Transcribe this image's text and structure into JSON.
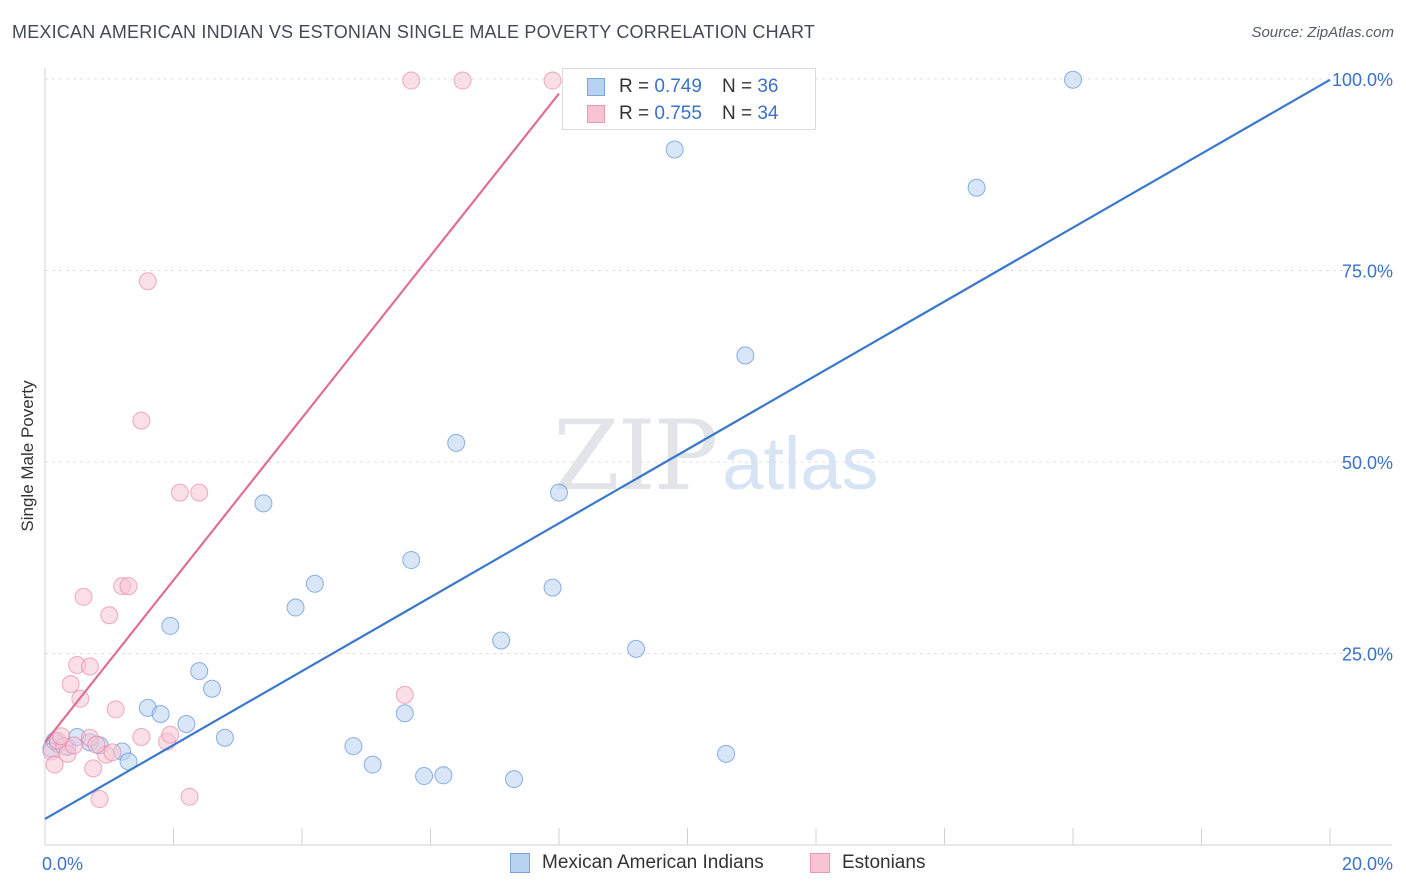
{
  "header": {
    "title": "MEXICAN AMERICAN INDIAN VS ESTONIAN SINGLE MALE POVERTY CORRELATION CHART",
    "source": "Source: ZipAtlas.com"
  },
  "watermark": {
    "zip": "ZIP",
    "atlas": "atlas"
  },
  "legend": {
    "r_label": "R =",
    "n_label": "N =",
    "rows": [
      {
        "r": "0.749",
        "n": "36"
      },
      {
        "r": "0.755",
        "n": "34"
      }
    ]
  },
  "chart_data": {
    "type": "scatter",
    "title": "MEXICAN AMERICAN INDIAN VS ESTONIAN SINGLE MALE POVERTY CORRELATION CHART",
    "xlabel": "",
    "ylabel": "Single Male Poverty",
    "xlim": [
      0,
      20
    ],
    "ylim": [
      0,
      100
    ],
    "x_tick_labels": [
      {
        "value": 0,
        "label": "0.0%"
      },
      {
        "value": 20,
        "label": "20.0%"
      }
    ],
    "y_tick_labels": [
      {
        "value": 25,
        "label": "25.0%"
      },
      {
        "value": 50,
        "label": "50.0%"
      },
      {
        "value": 75,
        "label": "75.0%"
      },
      {
        "value": 100,
        "label": "100.0%"
      }
    ],
    "grid": true,
    "legend_position": "bottom",
    "series": [
      {
        "name": "Mexican American Indians",
        "color": "#3a78cc",
        "fill": "#b8d2f2",
        "trend": {
          "x": [
            0,
            20
          ],
          "y": [
            3.4,
            99.9
          ]
        },
        "points": [
          [
            0.1,
            12.6
          ],
          [
            0.2,
            13.2
          ],
          [
            0.35,
            12.8
          ],
          [
            0.5,
            14.1
          ],
          [
            0.7,
            13.4
          ],
          [
            0.85,
            13.0
          ],
          [
            1.2,
            12.2
          ],
          [
            1.3,
            10.9
          ],
          [
            1.6,
            17.9
          ],
          [
            1.8,
            17.1
          ],
          [
            1.95,
            28.6
          ],
          [
            2.2,
            15.8
          ],
          [
            2.4,
            22.7
          ],
          [
            2.6,
            20.4
          ],
          [
            2.8,
            14.0
          ],
          [
            3.4,
            44.6
          ],
          [
            3.9,
            31.0
          ],
          [
            4.2,
            34.1
          ],
          [
            4.8,
            12.9
          ],
          [
            5.1,
            10.5
          ],
          [
            5.6,
            17.2
          ],
          [
            5.7,
            37.2
          ],
          [
            5.9,
            9.0
          ],
          [
            6.2,
            9.1
          ],
          [
            6.4,
            52.5
          ],
          [
            7.1,
            26.7
          ],
          [
            7.3,
            8.6
          ],
          [
            7.9,
            33.6
          ],
          [
            8.0,
            46.0
          ],
          [
            9.2,
            25.6
          ],
          [
            9.8,
            90.8
          ],
          [
            10.6,
            11.9
          ],
          [
            10.9,
            63.9
          ],
          [
            14.5,
            85.8
          ],
          [
            16.0,
            99.9
          ],
          [
            0.15,
            13.6
          ]
        ]
      },
      {
        "name": "Estonians",
        "color": "#e06e96",
        "fill": "#f8c4d4",
        "trend": {
          "x": [
            0,
            8.0
          ],
          "y": [
            13.4,
            98.1
          ]
        },
        "points": [
          [
            0.1,
            12.2
          ],
          [
            0.15,
            10.5
          ],
          [
            0.2,
            13.6
          ],
          [
            0.3,
            12.9
          ],
          [
            0.4,
            21.0
          ],
          [
            0.5,
            23.5
          ],
          [
            0.6,
            32.4
          ],
          [
            0.7,
            23.3
          ],
          [
            0.55,
            19.1
          ],
          [
            0.7,
            14.0
          ],
          [
            0.75,
            10.0
          ],
          [
            0.85,
            6.0
          ],
          [
            0.95,
            11.8
          ],
          [
            1.0,
            30.0
          ],
          [
            1.1,
            17.7
          ],
          [
            1.2,
            33.8
          ],
          [
            1.3,
            33.8
          ],
          [
            1.5,
            55.4
          ],
          [
            1.6,
            73.6
          ],
          [
            1.5,
            14.1
          ],
          [
            1.9,
            13.5
          ],
          [
            1.95,
            14.4
          ],
          [
            2.1,
            46.0
          ],
          [
            2.4,
            46.0
          ],
          [
            2.25,
            6.3
          ],
          [
            5.6,
            19.6
          ],
          [
            5.7,
            99.8
          ],
          [
            6.5,
            99.8
          ],
          [
            7.9,
            99.8
          ],
          [
            0.35,
            11.9
          ],
          [
            0.45,
            13.0
          ],
          [
            1.05,
            12.1
          ],
          [
            0.25,
            14.2
          ],
          [
            0.8,
            13.1
          ]
        ]
      }
    ]
  }
}
